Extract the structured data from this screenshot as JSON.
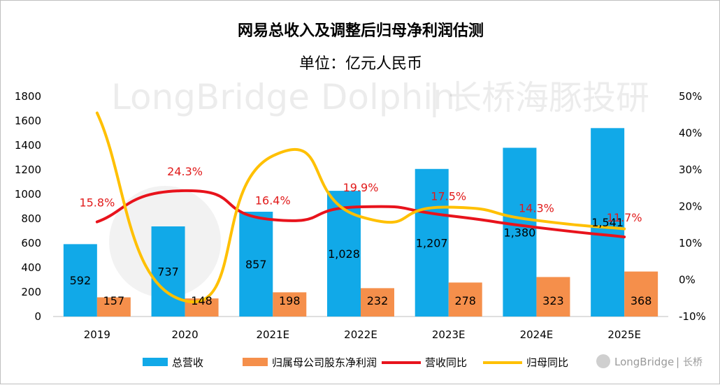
{
  "chart_data": {
    "type": "bar",
    "title": "网易总收入及调整后归母净利润估测",
    "subtitle": "单位：亿元人民币",
    "categories": [
      "2019",
      "2020",
      "2021E",
      "2022E",
      "2023E",
      "2024E",
      "2025E"
    ],
    "series": [
      {
        "name": "总营收",
        "kind": "bar",
        "axis": "left",
        "color": "#11a9e8",
        "values": [
          592,
          737,
          857,
          1028,
          1207,
          1380,
          1541
        ],
        "labels": [
          "592",
          "737",
          "857",
          "1,028",
          "1,207",
          "1,380",
          "1,541"
        ]
      },
      {
        "name": "归属母公司股东净利润",
        "kind": "bar",
        "axis": "left",
        "color": "#f58f4b",
        "values": [
          157,
          148,
          198,
          232,
          278,
          323,
          368
        ],
        "labels": [
          "157",
          "148",
          "198",
          "232",
          "278",
          "323",
          "368"
        ]
      },
      {
        "name": "营收同比",
        "kind": "line",
        "axis": "right",
        "color": "#e8131c",
        "values": [
          15.8,
          24.3,
          16.4,
          19.9,
          17.5,
          14.3,
          11.7
        ],
        "labels": [
          "15.8%",
          "24.3%",
          "16.4%",
          "19.9%",
          "17.5%",
          "14.3%",
          "11.7%"
        ]
      },
      {
        "name": "归母同比",
        "kind": "line",
        "axis": "right",
        "color": "#ffc000",
        "values": [
          45.5,
          -5.7,
          33.8,
          17.2,
          19.8,
          16.2,
          13.9
        ]
      }
    ],
    "y_left": {
      "min": 0,
      "max": 1800,
      "ticks": [
        "0",
        "200",
        "400",
        "600",
        "800",
        "1000",
        "1200",
        "1400",
        "1600",
        "1800"
      ]
    },
    "y_right": {
      "min": -10,
      "max": 50,
      "ticks": [
        "-10%",
        "0%",
        "10%",
        "20%",
        "30%",
        "40%",
        "50%"
      ]
    },
    "legend_position": "bottom"
  },
  "watermark": {
    "main": "LongBridge Dolphin",
    "separator": "|",
    "cn": "长桥海豚投研",
    "footer_brand": "LongBridge",
    "footer_cn": "长桥"
  }
}
